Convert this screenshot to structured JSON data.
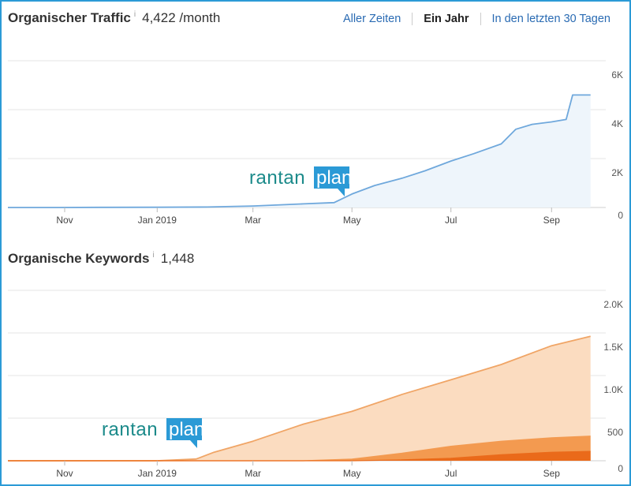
{
  "traffic": {
    "title": "Organischer Traffic",
    "info": "i",
    "value": "4,422 /month"
  },
  "keywords": {
    "title": "Organische Keywords",
    "info": "i",
    "value": "1,448"
  },
  "range_tabs": [
    {
      "label": "Aller Zeiten",
      "active": false
    },
    {
      "label": "Ein Jahr",
      "active": true
    },
    {
      "label": "In den letzten 30 Tagen",
      "active": false
    }
  ],
  "watermark": {
    "part1": "rantan",
    "part2": "plan"
  },
  "colors": {
    "traffic_line": "#6fa8dc",
    "traffic_fill": "#eef5fb",
    "kw_light_line": "#f0a566",
    "kw_light_fill": "#fbdcc0",
    "kw_mid": "#f39a50",
    "kw_dark": "#ea6a1a",
    "grid": "#e6e6e6",
    "logo_green": "#1b8a8a",
    "logo_blue": "#2b9ad6"
  },
  "chart_data": [
    {
      "type": "area",
      "name": "traffic",
      "x_ticks": [
        "Nov",
        "Jan 2019",
        "Mar",
        "May",
        "Jul",
        "Sep"
      ],
      "y_ticks": [
        "6K",
        "4K",
        "2K",
        "0"
      ],
      "ylim": [
        0,
        6000
      ],
      "xlim": [
        "2018-10-01",
        "2019-10-01"
      ],
      "series": [
        {
          "x": [
            "2018-10-01",
            "2018-11-01",
            "2018-12-01",
            "2019-01-01",
            "2019-02-01",
            "2019-03-01",
            "2019-04-01",
            "2019-04-20",
            "2019-05-01",
            "2019-05-15",
            "2019-06-01",
            "2019-06-15",
            "2019-07-01",
            "2019-07-15",
            "2019-08-01",
            "2019-08-10",
            "2019-08-20",
            "2019-09-01",
            "2019-09-10",
            "2019-09-12",
            "2019-09-14",
            "2019-09-25"
          ],
          "y": [
            0,
            0,
            5,
            10,
            20,
            60,
            150,
            200,
            550,
            900,
            1200,
            1500,
            1900,
            2200,
            2600,
            3200,
            3400,
            3500,
            3600,
            4100,
            4600,
            4600
          ]
        }
      ]
    },
    {
      "type": "area",
      "name": "keywords",
      "x_ticks": [
        "Nov",
        "Jan 2019",
        "Mar",
        "May",
        "Jul",
        "Sep"
      ],
      "y_ticks": [
        "2.0K",
        "1.5K",
        "1.0K",
        "500",
        "0"
      ],
      "ylim": [
        0,
        2000
      ],
      "xlim": [
        "2018-10-01",
        "2019-10-01"
      ],
      "series": [
        {
          "x": [
            "2018-10-01",
            "2019-01-01",
            "2019-01-25",
            "2019-02-05",
            "2019-03-01",
            "2019-04-01",
            "2019-05-01",
            "2019-06-01",
            "2019-07-01",
            "2019-08-01",
            "2019-09-01",
            "2019-09-25"
          ],
          "y": [
            0,
            0,
            20,
            100,
            230,
            430,
            580,
            780,
            950,
            1130,
            1350,
            1460
          ]
        },
        {
          "x": [
            "2018-10-01",
            "2019-04-01",
            "2019-05-01",
            "2019-06-01",
            "2019-07-01",
            "2019-08-01",
            "2019-09-01",
            "2019-09-25"
          ],
          "y": [
            0,
            0,
            20,
            90,
            170,
            230,
            270,
            290
          ]
        },
        {
          "x": [
            "2018-10-01",
            "2019-05-01",
            "2019-06-01",
            "2019-07-01",
            "2019-08-01",
            "2019-09-01",
            "2019-09-25"
          ],
          "y": [
            0,
            0,
            10,
            30,
            70,
            100,
            110
          ]
        }
      ]
    }
  ]
}
